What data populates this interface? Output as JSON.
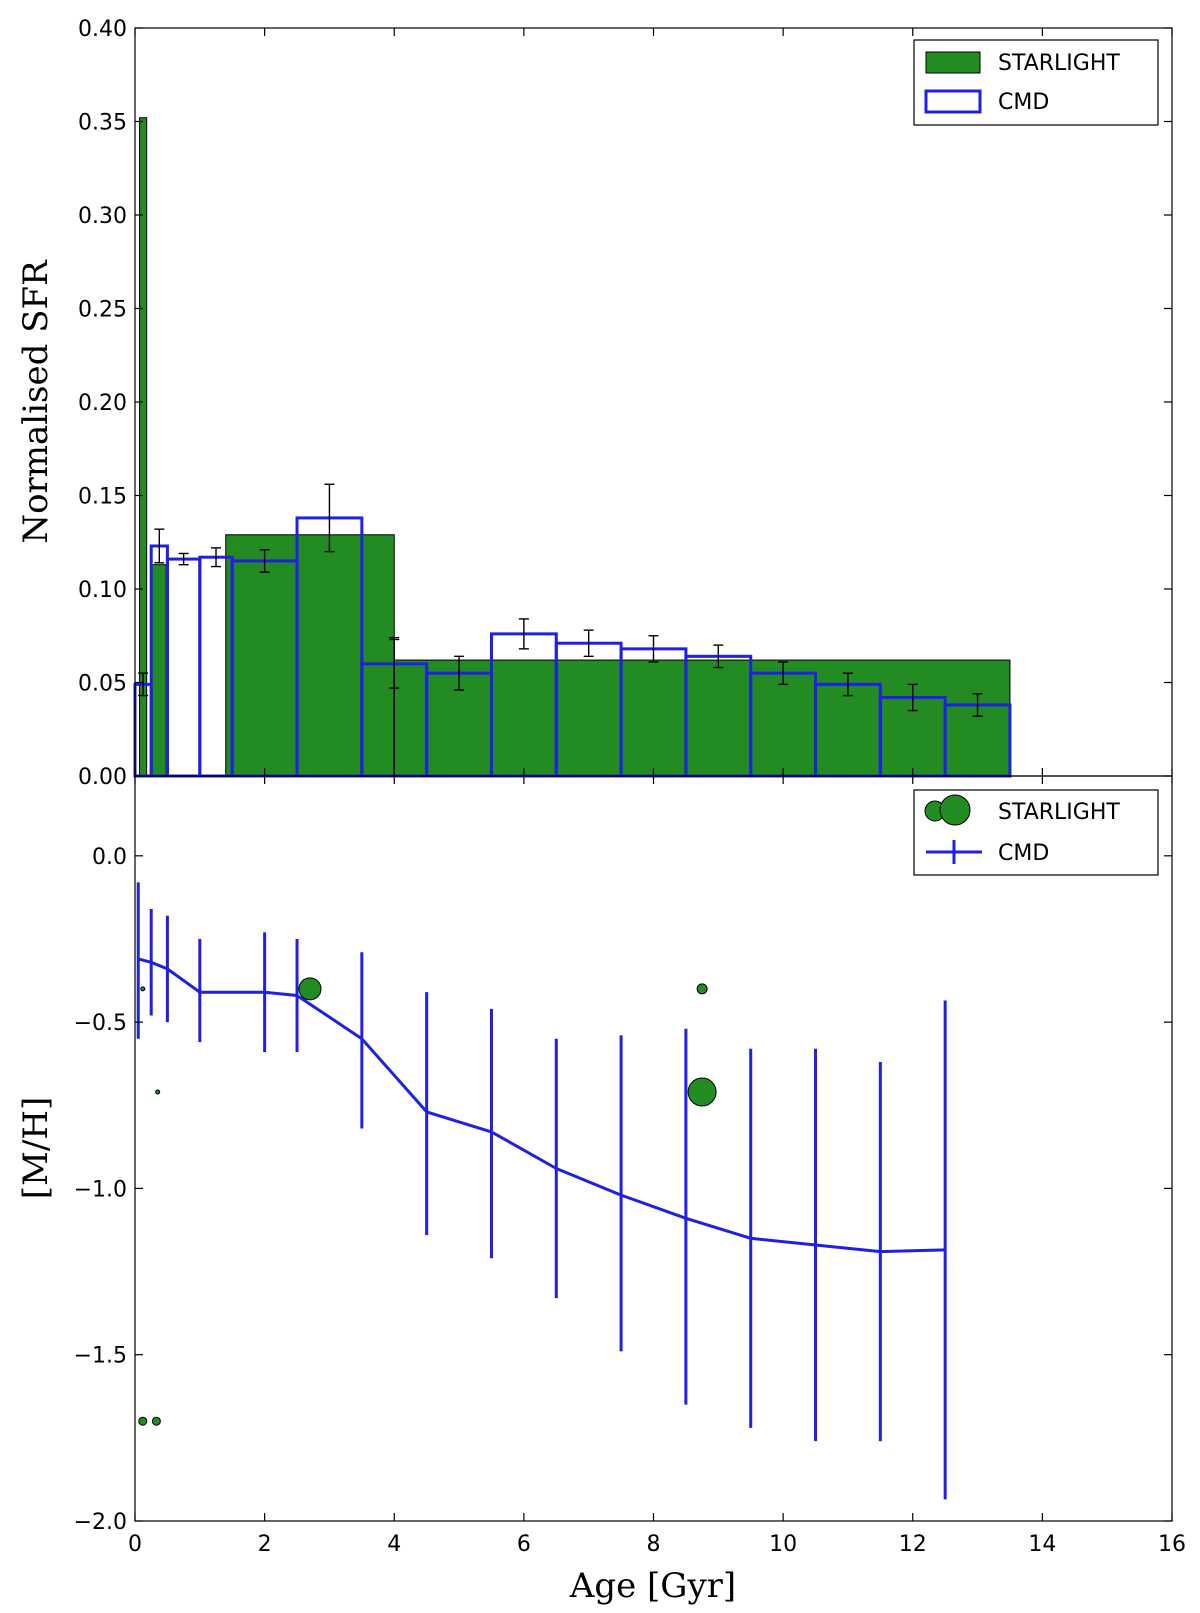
{
  "chart_data": [
    {
      "panel": "top",
      "type": "bar",
      "title": "",
      "xlabel": "",
      "ylabel": "Normalised SFR",
      "xlim": [
        0,
        16
      ],
      "ylim": [
        0,
        0.4
      ],
      "xticks": [
        0,
        2,
        4,
        6,
        8,
        10,
        12,
        14,
        16
      ],
      "yticks": [
        "0.00",
        "0.05",
        "0.10",
        "0.15",
        "0.20",
        "0.25",
        "0.30",
        "0.35",
        "0.40"
      ],
      "grid": false,
      "legend_position": "top-right",
      "legend": [
        "STARLIGHT",
        "CMD"
      ],
      "colors": {
        "starlight": "#228b22",
        "cmd": "#1f1fe6",
        "errorbar": "#000000"
      },
      "series": [
        {
          "name": "STARLIGHT",
          "style": "filled-bars",
          "bars": [
            {
              "x0": 0.07,
              "x1": 0.18,
              "value": 0.352
            },
            {
              "x0": 0.25,
              "x1": 0.48,
              "value": 0.113
            },
            {
              "x0": 1.4,
              "x1": 4.0,
              "value": 0.129
            },
            {
              "x0": 4.0,
              "x1": 13.5,
              "value": 0.062
            }
          ]
        },
        {
          "name": "CMD",
          "style": "open-bars",
          "bars": [
            {
              "x0": 0.0,
              "x1": 0.25,
              "value": 0.049,
              "err": 0.006
            },
            {
              "x0": 0.25,
              "x1": 0.5,
              "value": 0.123,
              "err": 0.009
            },
            {
              "x0": 0.5,
              "x1": 1.0,
              "value": 0.116,
              "err": 0.003
            },
            {
              "x0": 1.0,
              "x1": 1.5,
              "value": 0.117,
              "err": 0.005
            },
            {
              "x0": 1.5,
              "x1": 2.5,
              "value": 0.115,
              "err": 0.006
            },
            {
              "x0": 2.5,
              "x1": 3.5,
              "value": 0.138,
              "err": 0.018
            },
            {
              "x0": 3.5,
              "x1": 4.5,
              "value": 0.06,
              "err": 0.013
            },
            {
              "x0": 4.5,
              "x1": 5.5,
              "value": 0.055,
              "err": 0.009
            },
            {
              "x0": 5.5,
              "x1": 6.5,
              "value": 0.076,
              "err": 0.008
            },
            {
              "x0": 6.5,
              "x1": 7.5,
              "value": 0.071,
              "err": 0.007
            },
            {
              "x0": 7.5,
              "x1": 8.5,
              "value": 0.068,
              "err": 0.007
            },
            {
              "x0": 8.5,
              "x1": 9.5,
              "value": 0.064,
              "err": 0.006
            },
            {
              "x0": 9.5,
              "x1": 10.5,
              "value": 0.055,
              "err": 0.006
            },
            {
              "x0": 10.5,
              "x1": 11.5,
              "value": 0.049,
              "err": 0.006
            },
            {
              "x0": 11.5,
              "x1": 12.5,
              "value": 0.042,
              "err": 0.007
            },
            {
              "x0": 12.5,
              "x1": 13.5,
              "value": 0.038,
              "err": 0.006
            }
          ]
        }
      ],
      "extra_errorbars": [
        {
          "x": 4.0,
          "y": 0.037,
          "err": 0.037
        }
      ]
    },
    {
      "panel": "bottom",
      "type": "line",
      "title": "",
      "xlabel": "Age [Gyr]",
      "ylabel": "[M/H]",
      "xlim": [
        0,
        16
      ],
      "ylim": [
        -2.0,
        0.24
      ],
      "xticks": [
        0,
        2,
        4,
        6,
        8,
        10,
        12,
        14,
        16
      ],
      "yticks": [
        "0.0",
        "−0.5",
        "−1.0",
        "−1.5",
        "−2.0"
      ],
      "ytick_values": [
        0.0,
        -0.5,
        -1.0,
        -1.5,
        -2.0
      ],
      "grid": false,
      "legend_position": "top-right",
      "legend": [
        "STARLIGHT",
        "CMD"
      ],
      "series": [
        {
          "name": "CMD",
          "style": "line-with-errorbars",
          "x": [
            0.05,
            0.25,
            0.5,
            1.0,
            2.0,
            2.5,
            3.5,
            4.5,
            5.5,
            6.5,
            7.5,
            8.5,
            9.5,
            10.5,
            11.5,
            12.5
          ],
          "y": [
            -0.31,
            -0.32,
            -0.34,
            -0.41,
            -0.41,
            -0.42,
            -0.55,
            -0.77,
            -0.83,
            -0.94,
            -1.02,
            -1.09,
            -1.15,
            -1.17,
            -1.19,
            -1.185
          ],
          "err_low": [
            0.24,
            0.16,
            0.16,
            0.15,
            0.18,
            0.17,
            0.27,
            0.37,
            0.38,
            0.39,
            0.47,
            0.56,
            0.57,
            0.59,
            0.57,
            0.75
          ],
          "err_high": [
            0.23,
            0.16,
            0.16,
            0.16,
            0.18,
            0.17,
            0.26,
            0.36,
            0.37,
            0.39,
            0.48,
            0.57,
            0.57,
            0.59,
            0.57,
            0.75
          ]
        },
        {
          "name": "STARLIGHT",
          "style": "scatter-sized",
          "points": [
            {
              "x": 0.12,
              "y": -0.4,
              "size": 2
            },
            {
              "x": 0.35,
              "y": -0.71,
              "size": 2
            },
            {
              "x": 0.12,
              "y": -1.7,
              "size": 4
            },
            {
              "x": 0.33,
              "y": -1.7,
              "size": 4
            },
            {
              "x": 2.7,
              "y": -0.4,
              "size": 11
            },
            {
              "x": 8.75,
              "y": -0.4,
              "size": 5
            },
            {
              "x": 8.75,
              "y": -0.71,
              "size": 14
            }
          ]
        }
      ]
    }
  ]
}
